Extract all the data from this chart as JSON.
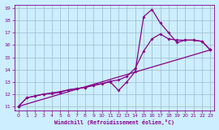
{
  "xlabel": "Windchill (Refroidissement éolien,°C)",
  "line_color": "#880088",
  "bg_color": "#cceeff",
  "grid_color": "#99bbcc",
  "xlim": [
    -0.5,
    23.5
  ],
  "ylim": [
    10.7,
    19.3
  ],
  "xticks": [
    0,
    1,
    2,
    3,
    4,
    5,
    6,
    7,
    8,
    9,
    10,
    11,
    12,
    13,
    14,
    15,
    16,
    17,
    18,
    19,
    20,
    21,
    22,
    23
  ],
  "yticks": [
    11,
    12,
    13,
    14,
    15,
    16,
    17,
    18,
    19
  ],
  "curve1_x": [
    0,
    1,
    2,
    3,
    4,
    5,
    6,
    7,
    8,
    9,
    10,
    11,
    12,
    13,
    14,
    15,
    16,
    17,
    18,
    19,
    20,
    21,
    22,
    23
  ],
  "curve1_y": [
    11,
    11.7,
    11.85,
    12.0,
    12.1,
    12.2,
    12.35,
    12.45,
    12.55,
    12.7,
    12.85,
    13.05,
    13.15,
    13.45,
    14.1,
    15.5,
    16.5,
    16.9,
    16.5,
    16.4,
    16.4,
    16.4,
    16.3,
    15.6
  ],
  "curve2_x": [
    0,
    1,
    2,
    3,
    4,
    5,
    6,
    7,
    8,
    9,
    10,
    11,
    12,
    13,
    14,
    15,
    16,
    17,
    18,
    19,
    20,
    21,
    22,
    23
  ],
  "curve2_y": [
    11,
    11.7,
    11.85,
    12.0,
    12.05,
    12.15,
    12.35,
    12.45,
    12.55,
    12.75,
    12.85,
    13.0,
    12.3,
    13.0,
    13.85,
    18.3,
    18.9,
    17.8,
    17.0,
    16.2,
    16.4,
    16.4,
    16.3,
    15.6
  ],
  "curve3_x": [
    0,
    23
  ],
  "curve3_y": [
    11,
    15.6
  ]
}
